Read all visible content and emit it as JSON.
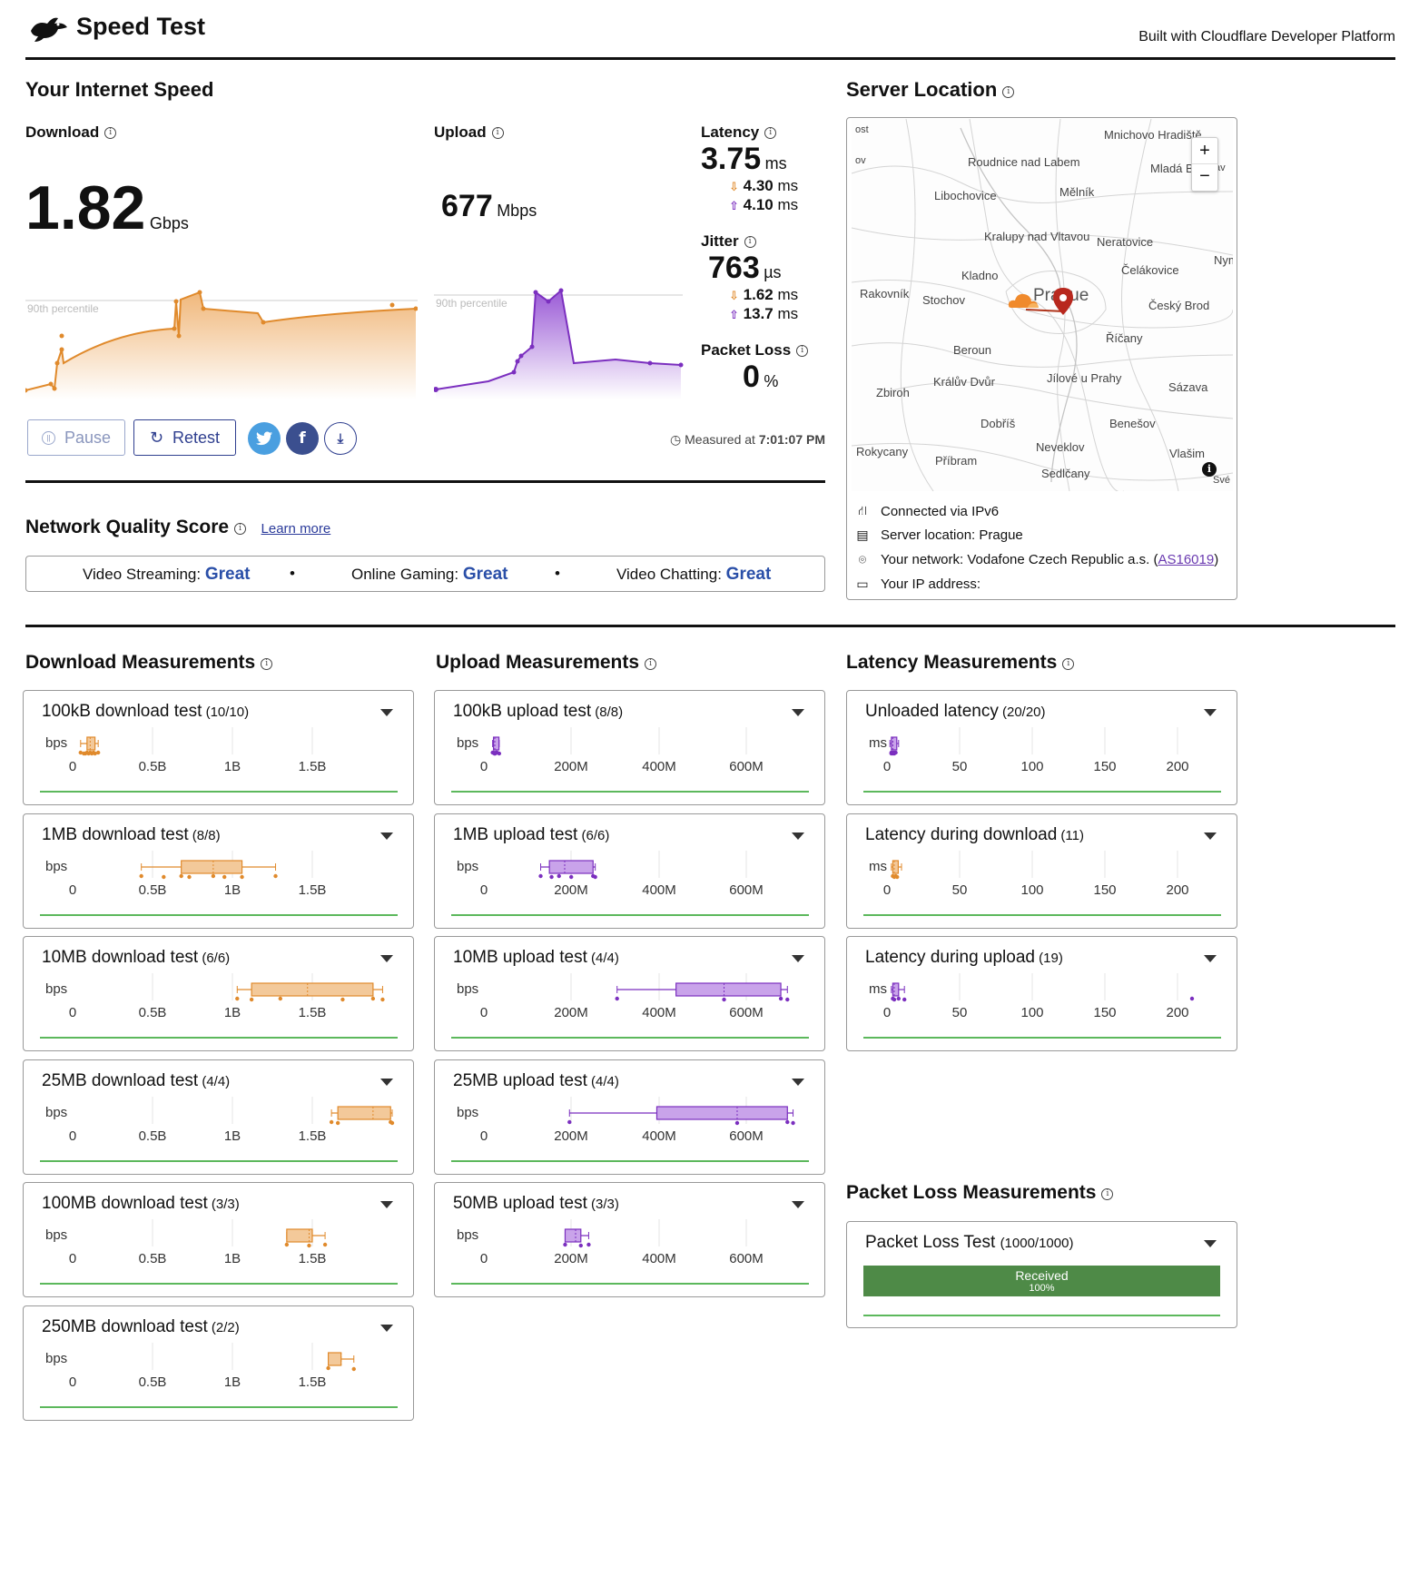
{
  "header": {
    "title": "Speed Test",
    "built_with": "Built with Cloudflare Developer Platform"
  },
  "speed": {
    "section_title": "Your Internet Speed",
    "download": {
      "label": "Download",
      "value": "1.82",
      "unit": "Gbps",
      "percentile_label": "90th percentile"
    },
    "upload": {
      "label": "Upload",
      "value": "677",
      "unit": "Mbps",
      "percentile_label": "90th percentile"
    },
    "latency": {
      "label": "Latency",
      "value": "3.75",
      "unit": "ms",
      "down": "4.30",
      "up": "4.10",
      "sub_unit": "ms"
    },
    "jitter": {
      "label": "Jitter",
      "value": "763",
      "unit": "µs",
      "down": "1.62",
      "up": "13.7",
      "sub_unit": "ms"
    },
    "packet_loss": {
      "label": "Packet Loss",
      "value": "0",
      "unit": "%"
    },
    "pause_label": "Pause",
    "retest_label": "Retest",
    "measured_prefix": "Measured at",
    "measured_time": "7:01:07 PM"
  },
  "server": {
    "section_title": "Server Location",
    "map_labels": [
      "ost",
      "Mnichovo Hradiště",
      "Roudnice nad Labem",
      "Mladá B",
      "Mělník",
      "Libochovice",
      "Kralupy nad Vltavou",
      "Neratovice",
      "Čelákovice",
      "Nymb",
      "Kladno",
      "Rakovník",
      "Stochov",
      "Prague",
      "Český Brod",
      "Říčany",
      "Beroun",
      "Králův Dvůr",
      "Jílové u Prahy",
      "Sázava",
      "Zbiroh",
      "Dobříš",
      "Benešov",
      "Rokycany",
      "Neveklov",
      "Příbram",
      "Vlašim",
      "Sedlčany",
      "Své",
      "ov",
      "av"
    ],
    "zoom_in": "+",
    "zoom_out": "−",
    "connected": "Connected via IPv6",
    "location": "Server location: Prague",
    "network_prefix": "Your network: Vodafone Czech Republic a.s. (",
    "asn": "AS16019",
    "network_suffix": ")",
    "ip": "Your IP address:"
  },
  "quality": {
    "title": "Network Quality Score",
    "learn_more": "Learn more",
    "items": [
      {
        "label": "Video Streaming:",
        "value": "Great"
      },
      {
        "label": "Online Gaming:",
        "value": "Great"
      },
      {
        "label": "Video Chatting:",
        "value": "Great"
      }
    ],
    "separator": "•"
  },
  "measurements": {
    "download_title": "Download Measurements",
    "upload_title": "Upload Measurements",
    "latency_title": "Latency Measurements",
    "packet_title": "Packet Loss Measurements",
    "download_axis": {
      "unit": "bps",
      "ticks": [
        "0",
        "0.5B",
        "1B",
        "1.5B"
      ]
    },
    "upload_axis": {
      "unit": "bps",
      "ticks": [
        "0",
        "200M",
        "400M",
        "600M"
      ]
    },
    "latency_axis": {
      "unit": "ms",
      "ticks": [
        "0",
        "50",
        "100",
        "150",
        "200"
      ]
    },
    "download": [
      {
        "name": "100kB download test",
        "count": "(10/10)"
      },
      {
        "name": "1MB download test",
        "count": "(8/8)"
      },
      {
        "name": "10MB download test",
        "count": "(6/6)"
      },
      {
        "name": "25MB download test",
        "count": "(4/4)"
      },
      {
        "name": "100MB download test",
        "count": "(3/3)"
      },
      {
        "name": "250MB download test",
        "count": "(2/2)"
      }
    ],
    "upload": [
      {
        "name": "100kB upload test",
        "count": "(8/8)"
      },
      {
        "name": "1MB upload test",
        "count": "(6/6)"
      },
      {
        "name": "10MB upload test",
        "count": "(4/4)"
      },
      {
        "name": "25MB upload test",
        "count": "(4/4)"
      },
      {
        "name": "50MB upload test",
        "count": "(3/3)"
      }
    ],
    "latency": [
      {
        "name": "Unloaded latency",
        "count": "(20/20)"
      },
      {
        "name": "Latency during download",
        "count": "(11)"
      },
      {
        "name": "Latency during upload",
        "count": "(19)"
      }
    ],
    "packet": {
      "name": "Packet Loss Test",
      "count": "(1000/1000)",
      "bar_label": "Received",
      "bar_pct": "100%",
      "received_fraction": 1.0
    }
  },
  "colors": {
    "download": "#e08a2c",
    "download_fill": "#f3c99a",
    "upload": "#7b2fbf",
    "upload_fill": "#c9a3ea",
    "green_line": "#5cb85c",
    "packet_green": "#4e8a47",
    "accent_blue": "#2a4fa8"
  }
}
